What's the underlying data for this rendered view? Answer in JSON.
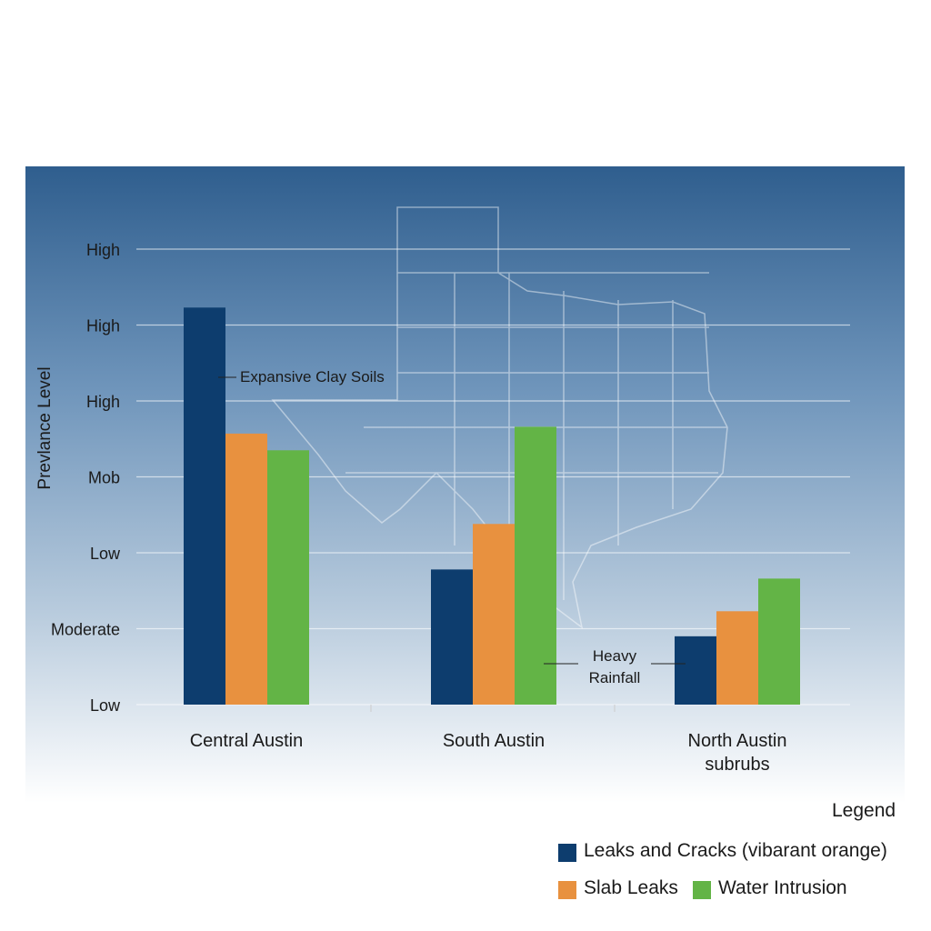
{
  "chart_data": {
    "type": "bar",
    "y_label": "Prevlance Level",
    "categories": [
      "Central Austin",
      "South Austin",
      "North Austin subrubs"
    ],
    "series": [
      {
        "name": "Leaks and Cracks (vibarant orange)",
        "color": "#0d3d6e",
        "values": [
          5.23,
          1.78,
          0.9
        ]
      },
      {
        "name": "Slab Leaks",
        "color": "#e8913f",
        "values": [
          3.57,
          2.38,
          1.23
        ]
      },
      {
        "name": "Water Intrusion",
        "color": "#63b446",
        "values": [
          3.35,
          3.66,
          1.66
        ]
      }
    ],
    "ylim": [
      0,
      6
    ],
    "yticks": [
      {
        "value": 0,
        "label": "Low"
      },
      {
        "value": 1,
        "label": "Moderate"
      },
      {
        "value": 2,
        "label": "Low"
      },
      {
        "value": 3,
        "label": "Mob"
      },
      {
        "value": 4,
        "label": "High"
      },
      {
        "value": 5,
        "label": "High"
      },
      {
        "value": 6,
        "label": "High"
      }
    ],
    "grid": true,
    "annotations": [
      "Expansive Clay Soils",
      "Heavy Rainfall"
    ],
    "legend_title": "Legend"
  }
}
